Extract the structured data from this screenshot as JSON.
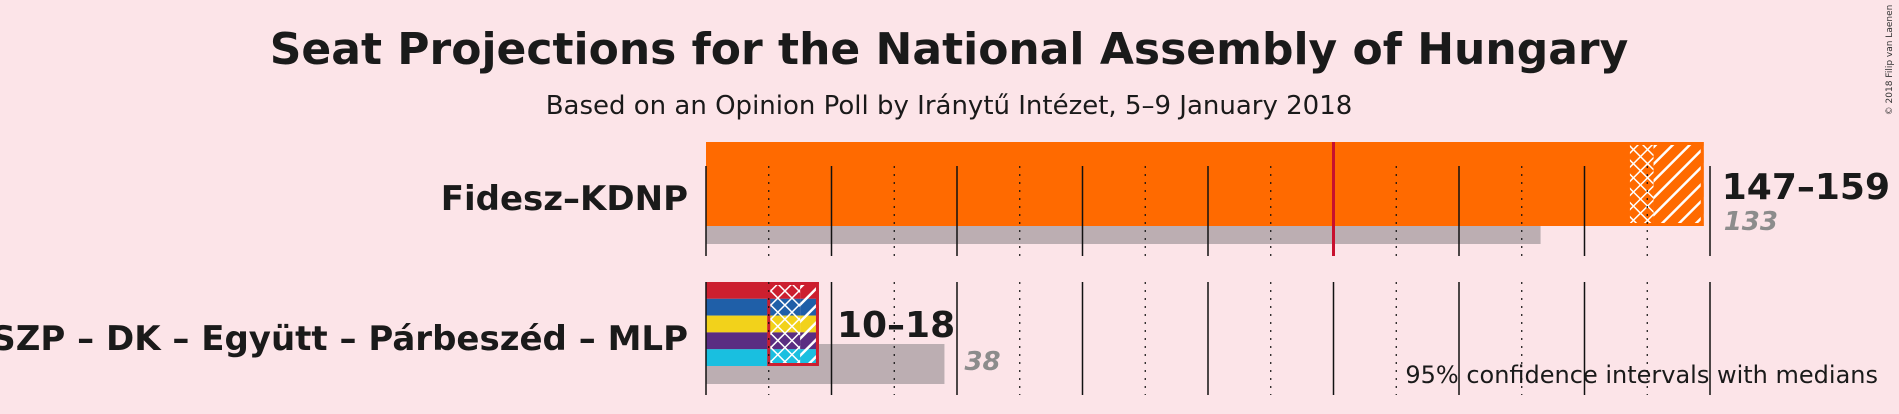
{
  "chart_data": {
    "type": "bar",
    "title": "Seat Projections for the National Assembly of Hungary",
    "subtitle": "Based on an Opinion Poll by Iránytű Intézet, 5–9 January 2018",
    "note": "95% confidence intervals with medians",
    "copyright": "© 2018 Filip van Laenen",
    "majority": 100,
    "xlim": [
      0,
      160
    ],
    "parties": [
      {
        "name": "Fidesz–KDNP",
        "ci_low": 147,
        "median": 151,
        "ci_high": 159,
        "range_label": "147–159",
        "last_result": 133,
        "last_label": "133",
        "colors": [
          "#ff6a00"
        ]
      },
      {
        "name": "MSZP – DK – Együtt – Párbeszéd – MLP",
        "ci_low": 10,
        "median": 15,
        "ci_high": 18,
        "range_label": "10–18",
        "last_result": 38,
        "last_label": "38",
        "colors": [
          "#cc1f2f",
          "#1f5fa8",
          "#f2d21b",
          "#5a2d82",
          "#19bfe0"
        ]
      }
    ],
    "colors": {
      "last_result": "#bcaeb2",
      "majority_line": "#c8102e",
      "background": "#fce4e8"
    }
  }
}
